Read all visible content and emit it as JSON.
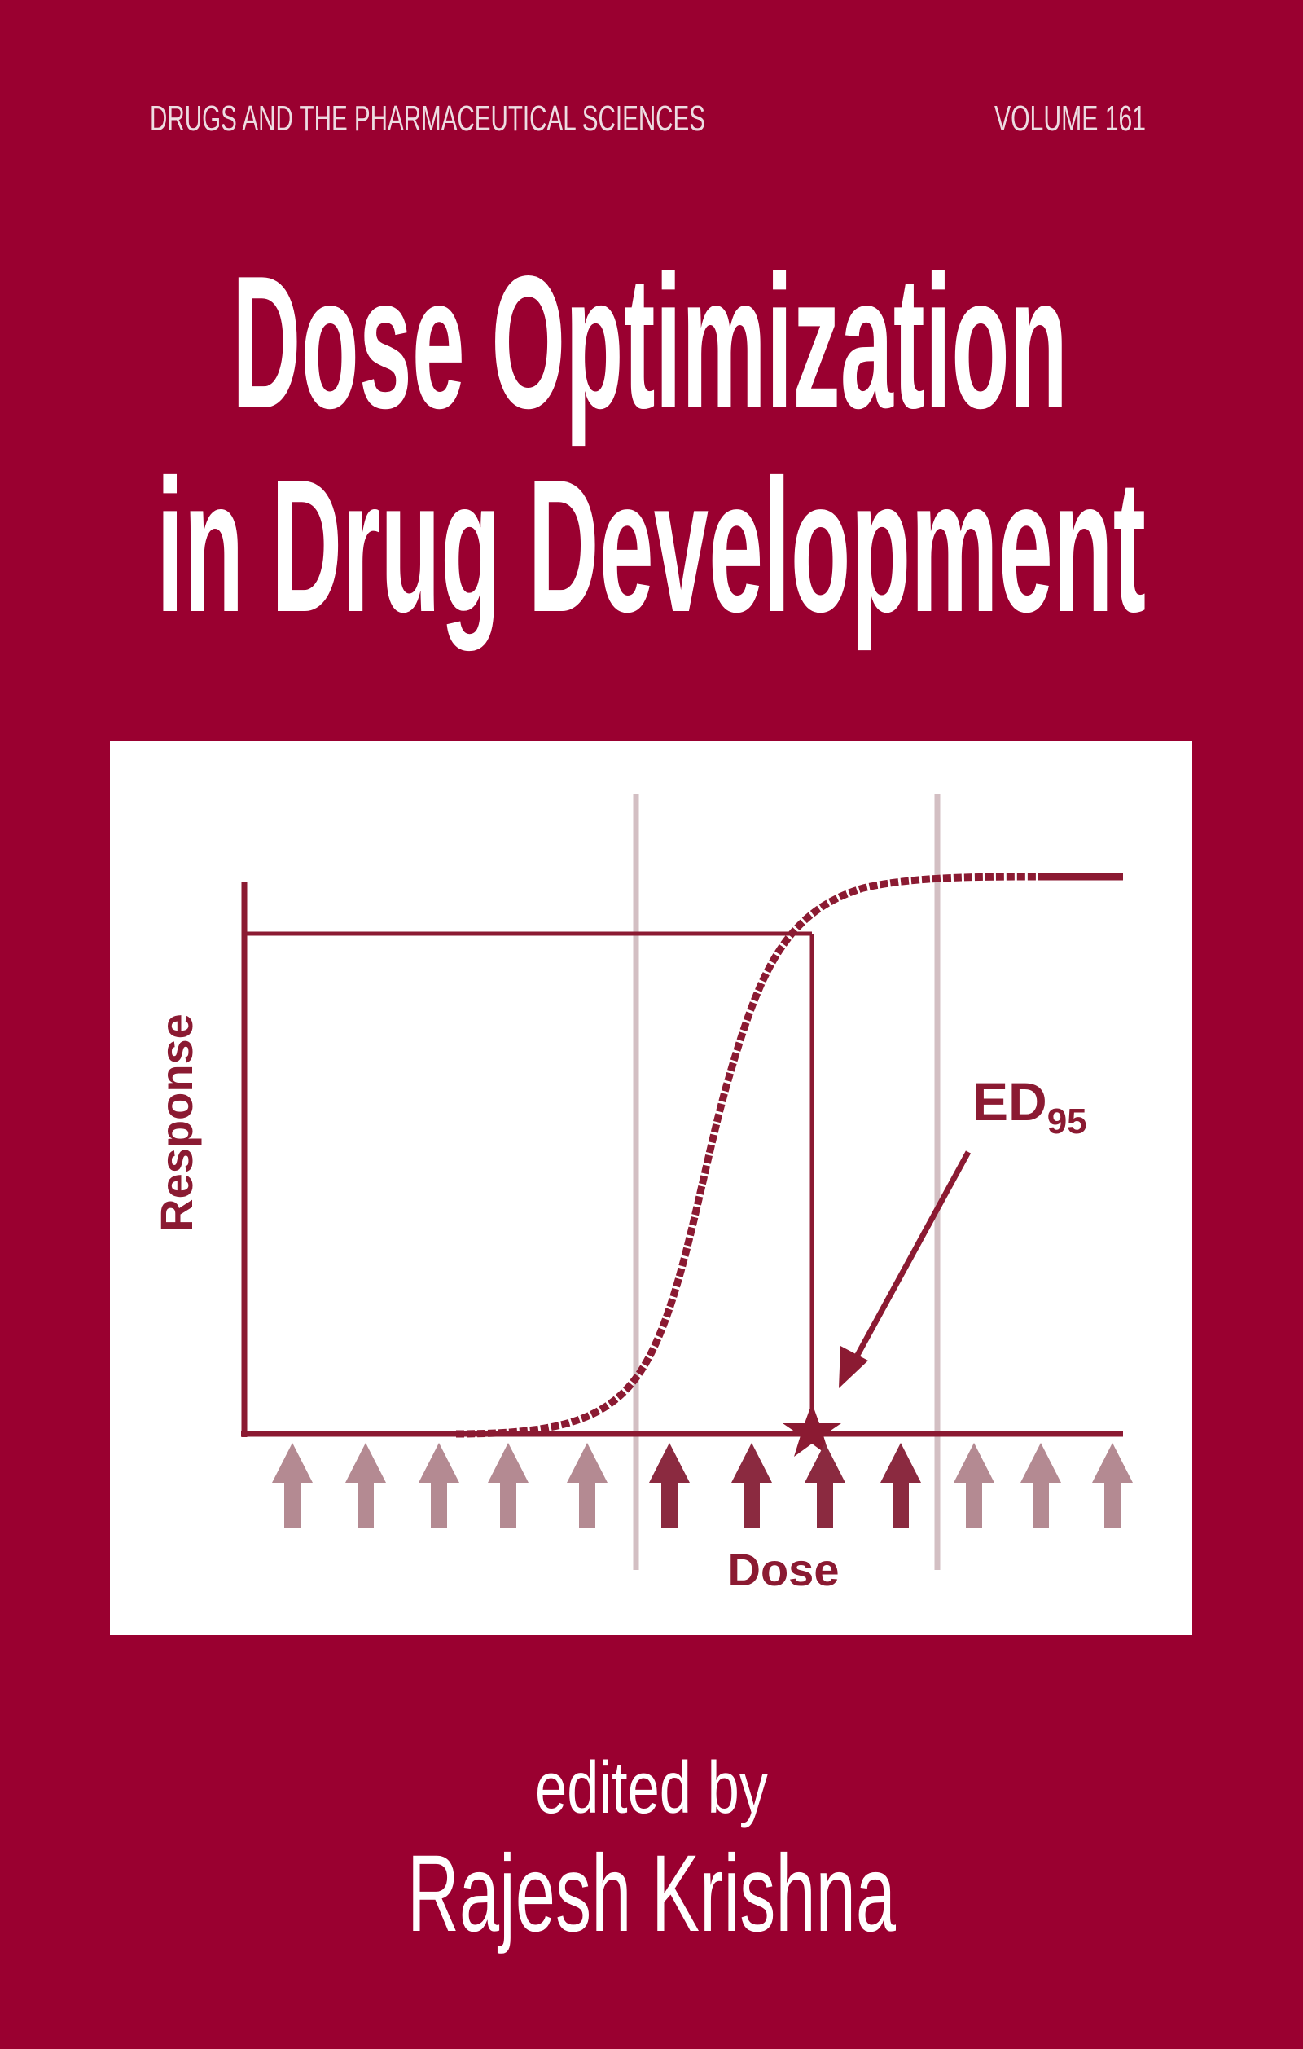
{
  "cover": {
    "series": "DRUGS AND THE PHARMACEUTICAL SCIENCES",
    "volume": "VOLUME 161",
    "title": [
      "Dose Optimization",
      "in Drug Development"
    ],
    "figure": {
      "y_label": "Response",
      "x_label": "Dose",
      "annotation": "ED",
      "annotation_subscript": "95"
    },
    "edited_by": "edited by",
    "editor": "Rajesh Krishna"
  }
}
